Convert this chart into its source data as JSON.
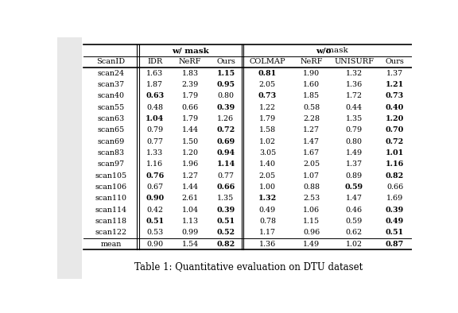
{
  "title": "Table 1: Quantitative evaluation on DTU dataset",
  "group1_header": "w/ mask",
  "group2_header_bold": "w/o",
  "group2_header_normal": " mask",
  "col_headers": [
    "ScanID",
    "IDR",
    "NeRF",
    "Ours",
    "COLMAP",
    "NeRF",
    "UNISURF",
    "Ours"
  ],
  "rows": [
    [
      "scan24",
      "1.63",
      "1.83",
      "1.15",
      "0.81",
      "1.90",
      "1.32",
      "1.37"
    ],
    [
      "scan37",
      "1.87",
      "2.39",
      "0.95",
      "2.05",
      "1.60",
      "1.36",
      "1.21"
    ],
    [
      "scan40",
      "0.63",
      "1.79",
      "0.80",
      "0.73",
      "1.85",
      "1.72",
      "0.73"
    ],
    [
      "scan55",
      "0.48",
      "0.66",
      "0.39",
      "1.22",
      "0.58",
      "0.44",
      "0.40"
    ],
    [
      "scan63",
      "1.04",
      "1.79",
      "1.26",
      "1.79",
      "2.28",
      "1.35",
      "1.20"
    ],
    [
      "scan65",
      "0.79",
      "1.44",
      "0.72",
      "1.58",
      "1.27",
      "0.79",
      "0.70"
    ],
    [
      "scan69",
      "0.77",
      "1.50",
      "0.69",
      "1.02",
      "1.47",
      "0.80",
      "0.72"
    ],
    [
      "scan83",
      "1.33",
      "1.20",
      "0.94",
      "3.05",
      "1.67",
      "1.49",
      "1.01"
    ],
    [
      "scan97",
      "1.16",
      "1.96",
      "1.14",
      "1.40",
      "2.05",
      "1.37",
      "1.16"
    ],
    [
      "scan105",
      "0.76",
      "1.27",
      "0.77",
      "2.05",
      "1.07",
      "0.89",
      "0.82"
    ],
    [
      "scan106",
      "0.67",
      "1.44",
      "0.66",
      "1.00",
      "0.88",
      "0.59",
      "0.66"
    ],
    [
      "scan110",
      "0.90",
      "2.61",
      "1.35",
      "1.32",
      "2.53",
      "1.47",
      "1.69"
    ],
    [
      "scan114",
      "0.42",
      "1.04",
      "0.39",
      "0.49",
      "1.06",
      "0.46",
      "0.39"
    ],
    [
      "scan118",
      "0.51",
      "1.13",
      "0.51",
      "0.78",
      "1.15",
      "0.59",
      "0.49"
    ],
    [
      "scan122",
      "0.53",
      "0.99",
      "0.52",
      "1.17",
      "0.96",
      "0.62",
      "0.51"
    ]
  ],
  "mean_row": [
    "mean",
    "0.90",
    "1.54",
    "0.82",
    "1.36",
    "1.49",
    "1.02",
    "0.87"
  ],
  "bold_mask": [
    [
      false,
      false,
      false,
      true,
      true,
      false,
      false,
      false
    ],
    [
      false,
      false,
      false,
      true,
      false,
      false,
      false,
      true
    ],
    [
      false,
      true,
      false,
      false,
      true,
      false,
      false,
      true
    ],
    [
      false,
      false,
      false,
      true,
      false,
      false,
      false,
      true
    ],
    [
      false,
      true,
      false,
      false,
      false,
      false,
      false,
      true
    ],
    [
      false,
      false,
      false,
      true,
      false,
      false,
      false,
      true
    ],
    [
      false,
      false,
      false,
      true,
      false,
      false,
      false,
      true
    ],
    [
      false,
      false,
      false,
      true,
      false,
      false,
      false,
      true
    ],
    [
      false,
      false,
      false,
      true,
      false,
      false,
      false,
      true
    ],
    [
      false,
      true,
      false,
      false,
      false,
      false,
      false,
      true
    ],
    [
      false,
      false,
      false,
      true,
      false,
      false,
      true,
      false
    ],
    [
      false,
      true,
      false,
      false,
      true,
      false,
      false,
      false
    ],
    [
      false,
      false,
      false,
      true,
      false,
      false,
      false,
      true
    ],
    [
      false,
      true,
      false,
      true,
      false,
      false,
      false,
      true
    ],
    [
      false,
      false,
      false,
      true,
      false,
      false,
      false,
      true
    ]
  ],
  "mean_bold": [
    false,
    false,
    false,
    true,
    false,
    false,
    false,
    true
  ],
  "bg_color": "#ffffff",
  "text_color": "#000000",
  "left_margin_color": "#e8e8e8"
}
